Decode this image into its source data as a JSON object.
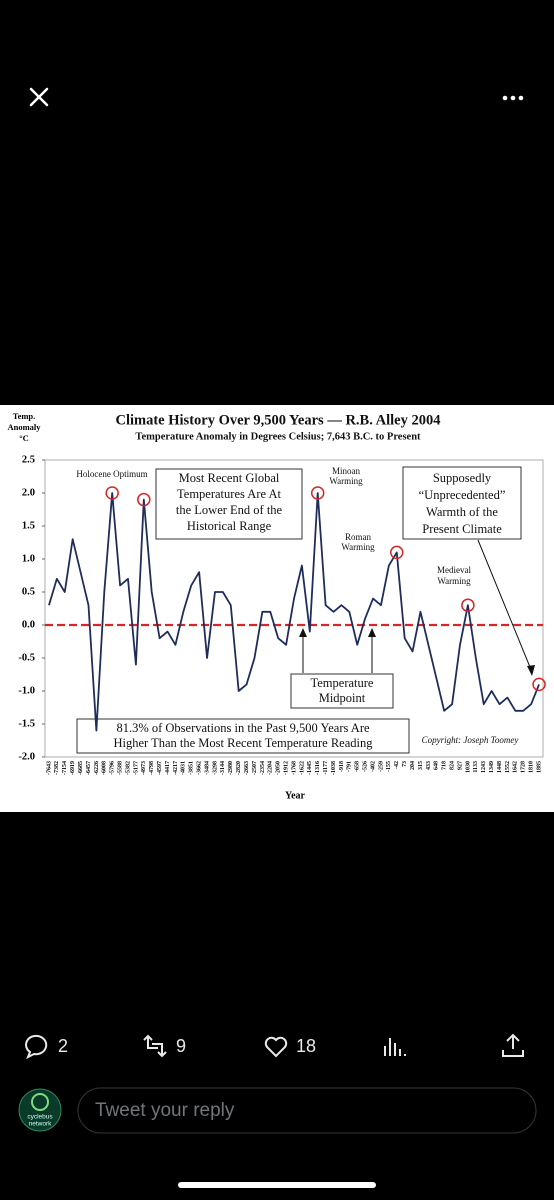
{
  "ui": {
    "reply_count": "2",
    "repost_count": "9",
    "like_count": "18",
    "reply_placeholder": "Tweet your reply",
    "avatar": [
      "cyclebus",
      "network"
    ]
  },
  "chart_data": {
    "type": "line",
    "title": "Climate History Over 9,500 Years — R.B. Alley 2004",
    "subtitle": "Temperature Anomaly in Degrees Celsius; 7,643 B.C. to Present",
    "ylabel": [
      "Temp.",
      "Anomaly",
      "°C"
    ],
    "xlabel": "Year",
    "categories": [
      "-7643",
      "-7382",
      "-7154",
      "-6919",
      "-6685",
      "-6457",
      "-6226",
      "-6008",
      "-5796",
      "-5588",
      "-5382",
      "-5177",
      "-4973",
      "-4798",
      "-4597",
      "-4417",
      "-4217",
      "-4031",
      "-3851",
      "-3662",
      "-3484",
      "-3298",
      "-3144",
      "-2980",
      "-2820",
      "-2663",
      "-2507",
      "-2354",
      "-2204",
      "-2050",
      "-1912",
      "-1768",
      "-1622",
      "-1445",
      "-1316",
      "-1177",
      "-1038",
      "-918",
      "-791",
      "-658",
      "-526",
      "-402",
      "-259",
      "-155",
      "-42",
      "73",
      "204",
      "315",
      "433",
      "648",
      "718",
      "824",
      "927",
      "1030",
      "1133",
      "1243",
      "1349",
      "1448",
      "1552",
      "1642",
      "1728",
      "1810",
      "1885"
    ],
    "series": [
      {
        "name": "Temperature anomaly",
        "color": "#1f2d5c",
        "values": [
          0.3,
          0.7,
          0.5,
          1.3,
          0.8,
          0.3,
          -1.6,
          0.5,
          2.0,
          0.6,
          0.7,
          -0.6,
          1.9,
          0.5,
          -0.2,
          -0.1,
          -0.3,
          0.2,
          0.6,
          0.8,
          -0.5,
          0.5,
          0.5,
          0.3,
          -1.0,
          -0.9,
          -0.5,
          0.2,
          0.2,
          -0.2,
          -0.3,
          0.4,
          0.9,
          -0.1,
          2.0,
          0.3,
          0.2,
          0.3,
          0.2,
          -0.3,
          0.1,
          0.4,
          0.3,
          0.9,
          1.1,
          -0.2,
          -0.4,
          0.2,
          -0.3,
          -0.8,
          -1.3,
          -1.2,
          -0.3,
          0.3,
          -0.5,
          -1.2,
          -1.0,
          -1.2,
          -1.1,
          -1.3,
          -1.3,
          -1.2,
          -0.9
        ]
      }
    ],
    "highlight": [
      8,
      12,
      34,
      44,
      53,
      62
    ],
    "highlight_color": "#d62728",
    "midline": 0,
    "midline_color": "#d62728",
    "ylim": [
      -2,
      2.5
    ],
    "yticks": [
      2.5,
      {
        "value": 2,
        "label": "2.0"
      },
      1.5,
      {
        "value": 1,
        "label": "1.0"
      },
      0.5,
      {
        "value": 0,
        "label": "0.0"
      },
      -0.5,
      {
        "value": -1,
        "label": "-1.0"
      },
      -1.5,
      {
        "value": -2,
        "label": "-2.0"
      }
    ],
    "annotations": {
      "holocene": "Holocene Optimum",
      "recent": [
        "Most Recent Global",
        "Temperatures Are At",
        "the Lower End of the",
        "Historical Range"
      ],
      "minoan": [
        "Minoan",
        "Warming"
      ],
      "roman": [
        "Roman",
        "Warming"
      ],
      "unprecedented": [
        "Supposedly",
        "“Unprecedented”",
        "Warmth of the",
        "Present Climate"
      ],
      "medieval": [
        "Medieval",
        "Warming"
      ],
      "midpoint": [
        "Temperature",
        "Midpoint"
      ],
      "observations": [
        "81.3% of Observations in the Past 9,500 Years Are",
        "Higher Than the Most Recent Temperature Reading"
      ],
      "copyright": "Copyright: Joseph Toomey"
    }
  }
}
